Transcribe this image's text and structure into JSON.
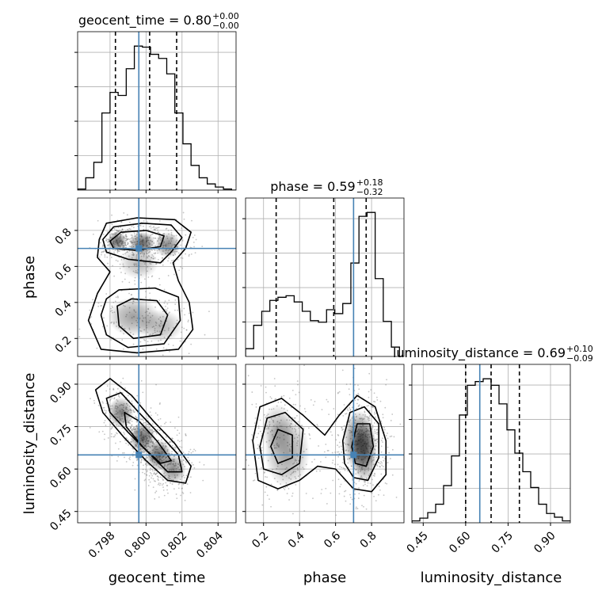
{
  "chart_data": {
    "type": "corner",
    "parameters": [
      "geocent_time",
      "phase",
      "luminosity_distance"
    ],
    "truths": {
      "geocent_time": 0.7996,
      "phase": 0.7,
      "luminosity_distance": 0.65
    },
    "colors": {
      "truth": "#4682b4",
      "hist": "#000000",
      "grid": "#b0b0b0",
      "scatter": "#7f7f7f"
    },
    "titles": {
      "geocent_time": {
        "label": "geocent_time",
        "value": "0.80",
        "plus": "+0.00",
        "minus": "−0.00"
      },
      "phase": {
        "label": "phase",
        "value": "0.59",
        "plus": "+0.18",
        "minus": "−0.32"
      },
      "luminosity_distance": {
        "label": "luminosity_distance",
        "value": "0.69",
        "plus": "+0.10",
        "minus": "−0.09"
      }
    },
    "diagonal": [
      {
        "param": "geocent_time",
        "xlim": [
          0.7962,
          0.805
        ],
        "hist_edges": [
          0.7962,
          0.79665,
          0.7971,
          0.79755,
          0.798,
          0.79845,
          0.7989,
          0.79935,
          0.7998,
          0.80025,
          0.8007,
          0.80115,
          0.8016,
          0.80205,
          0.8025,
          0.80295,
          0.8034,
          0.80385,
          0.8043,
          0.80475,
          0.8052
        ],
        "hist_counts": [
          1,
          12,
          27,
          75,
          95,
          92,
          118,
          140,
          139,
          132,
          128,
          113,
          75,
          45,
          24,
          12,
          6,
          3,
          1,
          0
        ],
        "quantiles": [
          0.7983,
          0.8002,
          0.8017
        ]
      },
      {
        "param": "phase",
        "xlim": [
          0.1,
          0.98
        ],
        "hist_edges": [
          0.1,
          0.145,
          0.19,
          0.235,
          0.28,
          0.325,
          0.37,
          0.415,
          0.46,
          0.505,
          0.55,
          0.595,
          0.64,
          0.685,
          0.73,
          0.775,
          0.82,
          0.865,
          0.91,
          0.955,
          1.0
        ],
        "hist_counts": [
          10,
          40,
          58,
          72,
          76,
          78,
          70,
          58,
          46,
          44,
          60,
          55,
          68,
          120,
          180,
          185,
          100,
          45,
          12,
          0
        ],
        "quantiles": [
          0.27,
          0.59,
          0.77
        ]
      },
      {
        "param": "luminosity_distance",
        "xlim": [
          0.41,
          0.97
        ],
        "hist_edges": [
          0.41,
          0.438,
          0.466,
          0.494,
          0.522,
          0.55,
          0.578,
          0.606,
          0.634,
          0.662,
          0.69,
          0.718,
          0.746,
          0.774,
          0.802,
          0.83,
          0.858,
          0.886,
          0.914,
          0.942,
          0.97
        ],
        "hist_counts": [
          2,
          5,
          11,
          20,
          40,
          72,
          116,
          148,
          152,
          155,
          148,
          128,
          100,
          75,
          55,
          38,
          20,
          10,
          6,
          2
        ],
        "quantiles": [
          0.6,
          0.69,
          0.79
        ]
      }
    ],
    "axes": {
      "geocent_time": {
        "lim": [
          0.7962,
          0.805
        ],
        "ticks": [
          0.798,
          0.8,
          0.802,
          0.804
        ],
        "tick_labels": [
          "0.798",
          "0.800",
          "0.802",
          "0.804"
        ],
        "label": "geocent_time"
      },
      "phase": {
        "lim": [
          0.1,
          0.98
        ],
        "ticks": [
          0.2,
          0.4,
          0.6,
          0.8
        ],
        "tick_labels": [
          "0.2",
          "0.4",
          "0.6",
          "0.8"
        ],
        "label": "phase"
      },
      "luminosity_distance": {
        "lim": [
          0.41,
          0.97
        ],
        "ticks": [
          0.45,
          0.6,
          0.75,
          0.9
        ],
        "tick_labels": [
          "0.45",
          "0.60",
          "0.75",
          "0.90"
        ],
        "label": "luminosity_distance"
      }
    },
    "grid": true
  }
}
